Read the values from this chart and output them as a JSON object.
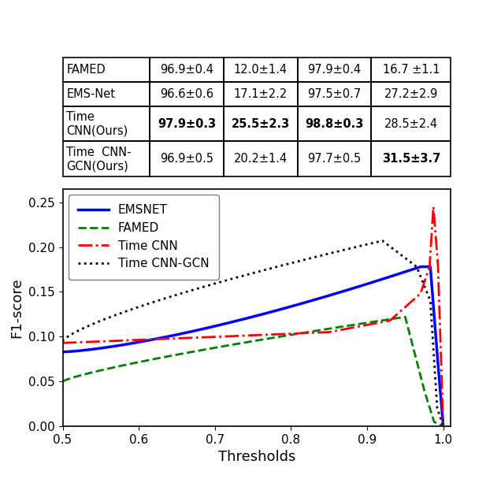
{
  "table": {
    "rows": [
      {
        "name": "FAMED",
        "col1": "96.9±0.4",
        "col2": "12.0±1.4",
        "col3": "97.9±0.4",
        "col4": "16.7 ±1.1",
        "bold_cols": []
      },
      {
        "name": "EMS-Net",
        "col1": "96.6±0.6",
        "col2": "17.1±2.2",
        "col3": "97.5±0.7",
        "col4": "27.2±2.9",
        "bold_cols": []
      },
      {
        "name": "Time\nCNN(Ours)",
        "col1": "97.9±0.3",
        "col2": "25.5±2.3",
        "col3": "98.8±0.3",
        "col4": "28.5±2.4",
        "bold_cols": [
          1,
          2,
          3
        ]
      },
      {
        "name": "Time  CNN-\nGCN(Ours)",
        "col1": "96.9±0.5",
        "col2": "20.2±1.4",
        "col3": "97.7±0.5",
        "col4": "31.5±3.7",
        "bold_cols": [
          4
        ]
      }
    ]
  },
  "plot": {
    "xlabel": "Thresholds",
    "ylabel": "F1-score",
    "xlim": [
      0.5,
      1.01
    ],
    "ylim": [
      0.0,
      0.265
    ],
    "yticks": [
      0.0,
      0.05,
      0.1,
      0.15,
      0.2,
      0.25
    ],
    "xticks": [
      0.5,
      0.6,
      0.7,
      0.8,
      0.9,
      1.0
    ],
    "lines": {
      "emsnet": {
        "label": "EMSNET",
        "color": "blue",
        "linestyle": "-",
        "linewidth": 2.5
      },
      "famed": {
        "label": "FAMED",
        "color": "green",
        "linestyle": "--",
        "linewidth": 2.0
      },
      "timecnn": {
        "label": "Time CNN",
        "color": "red",
        "linestyle": "-.",
        "linewidth": 2.0
      },
      "timecnngcn": {
        "label": "Time CNN-GCN",
        "color": "black",
        "linestyle": ":",
        "linewidth": 2.0
      }
    }
  }
}
